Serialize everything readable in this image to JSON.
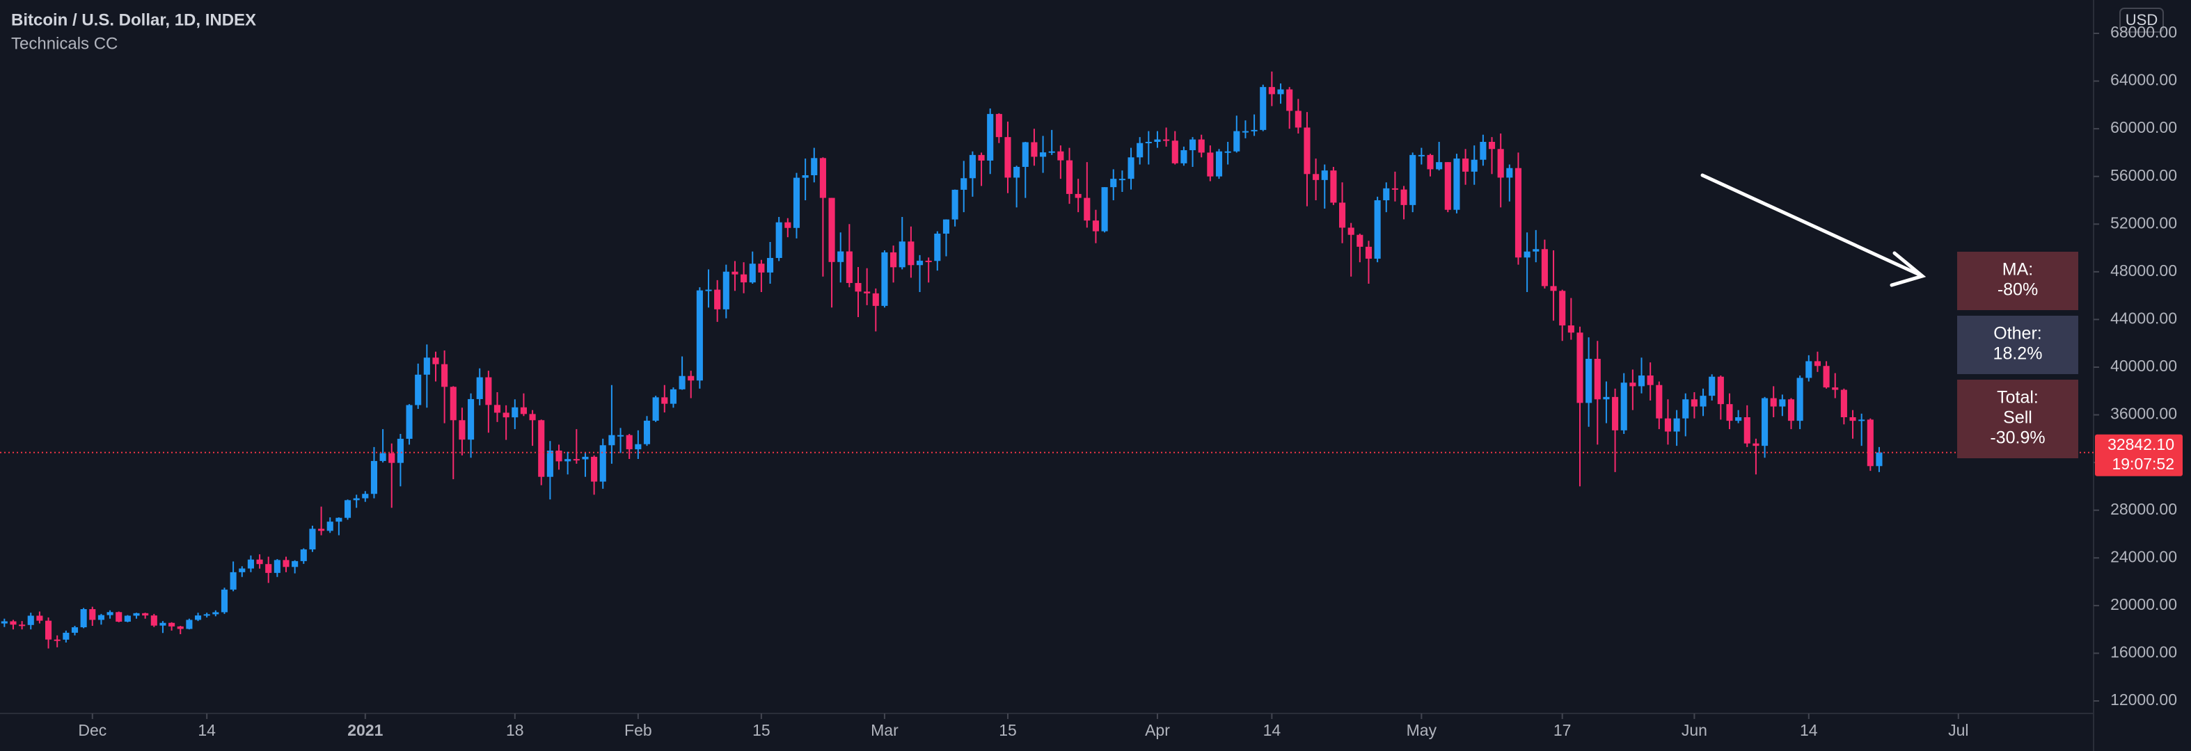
{
  "chart_data": {
    "type": "candlestick",
    "title": "Bitcoin / U.S. Dollar, 1D, INDEX",
    "subtitle": "Technicals CC",
    "currency": "USD",
    "up_color": "#2196f3",
    "down_color": "#f7296d",
    "xlim": [
      -0.5,
      237.2
    ],
    "xticks": [
      {
        "value": 10,
        "label": "Dec"
      },
      {
        "value": 23,
        "label": "14"
      },
      {
        "value": 41,
        "label": "2021"
      },
      {
        "value": 58,
        "label": "18"
      },
      {
        "value": 72,
        "label": "Feb"
      },
      {
        "value": 86,
        "label": "15"
      },
      {
        "value": 100,
        "label": "Mar"
      },
      {
        "value": 114,
        "label": "15"
      },
      {
        "value": 131,
        "label": "Apr"
      },
      {
        "value": 144,
        "label": "14"
      },
      {
        "value": 161,
        "label": "May"
      },
      {
        "value": 177,
        "label": "17"
      },
      {
        "value": 192,
        "label": "Jun"
      },
      {
        "value": 205,
        "label": "14"
      },
      {
        "value": 222,
        "label": "Jul"
      }
    ],
    "ylim": [
      10950,
      70800
    ],
    "yticks": [
      {
        "value": 12000,
        "label": "12000.00"
      },
      {
        "value": 16000,
        "label": "16000.00"
      },
      {
        "value": 20000,
        "label": "20000.00"
      },
      {
        "value": 24000,
        "label": "24000.00"
      },
      {
        "value": 28000,
        "label": "28000.00"
      },
      {
        "value": 32000,
        "label": "32000.00"
      },
      {
        "value": 36000,
        "label": "36000.00"
      },
      {
        "value": 40000,
        "label": "40000.00"
      },
      {
        "value": 44000,
        "label": "44000.00"
      },
      {
        "value": 48000,
        "label": "48000.00"
      },
      {
        "value": 52000,
        "label": "52000.00"
      },
      {
        "value": 56000,
        "label": "56000.00"
      },
      {
        "value": 60000,
        "label": "60000.00"
      },
      {
        "value": 64000,
        "label": "64000.00"
      },
      {
        "value": 68000,
        "label": "68000.00"
      }
    ],
    "last_price": {
      "value": 32842.1,
      "label": "32842.10"
    },
    "countdown": "19:07:52",
    "panels": [
      {
        "lines": [
          "MA:",
          "-80%"
        ]
      },
      {
        "lines": [
          "Other:",
          "18.2%"
        ]
      },
      {
        "lines": [
          "Total:",
          "Sell",
          "-30.9%"
        ]
      }
    ],
    "candles": [
      [
        18500,
        18900,
        18200,
        18680
      ],
      [
        18680,
        18800,
        18000,
        18400
      ],
      [
        18400,
        18700,
        18000,
        18370
      ],
      [
        18370,
        19400,
        18000,
        19150
      ],
      [
        19150,
        19500,
        18500,
        18730
      ],
      [
        18730,
        19000,
        16400,
        17150
      ],
      [
        17150,
        17500,
        16500,
        17140
      ],
      [
        17140,
        17900,
        16900,
        17720
      ],
      [
        17720,
        18300,
        17500,
        18180
      ],
      [
        18180,
        19800,
        18100,
        19700
      ],
      [
        19700,
        19900,
        18300,
        18800
      ],
      [
        18800,
        19300,
        18400,
        19200
      ],
      [
        19200,
        19600,
        18900,
        19450
      ],
      [
        19450,
        19500,
        18600,
        18650
      ],
      [
        18650,
        19200,
        18600,
        19150
      ],
      [
        19150,
        19400,
        18900,
        19360
      ],
      [
        19360,
        19400,
        18900,
        19170
      ],
      [
        19170,
        19300,
        18200,
        18320
      ],
      [
        18320,
        18700,
        17700,
        18550
      ],
      [
        18550,
        18600,
        17900,
        18250
      ],
      [
        18250,
        18300,
        17600,
        18040
      ],
      [
        18040,
        18900,
        18000,
        18800
      ],
      [
        18800,
        19400,
        18700,
        19170
      ],
      [
        19170,
        19400,
        19000,
        19270
      ],
      [
        19270,
        19600,
        19100,
        19440
      ],
      [
        19440,
        21500,
        19300,
        21340
      ],
      [
        21340,
        23700,
        21200,
        22800
      ],
      [
        22800,
        23300,
        22400,
        23110
      ],
      [
        23110,
        24200,
        22800,
        23860
      ],
      [
        23860,
        24300,
        23100,
        23480
      ],
      [
        23480,
        24100,
        21900,
        22740
      ],
      [
        22740,
        23900,
        22400,
        23820
      ],
      [
        23820,
        24100,
        22800,
        23240
      ],
      [
        23240,
        23800,
        22700,
        23730
      ],
      [
        23730,
        24800,
        23500,
        24710
      ],
      [
        24710,
        26700,
        24500,
        26440
      ],
      [
        26440,
        28300,
        25900,
        26270
      ],
      [
        26270,
        27400,
        26100,
        27040
      ],
      [
        27040,
        27400,
        25900,
        27360
      ],
      [
        27360,
        28900,
        27200,
        28840
      ],
      [
        28840,
        29300,
        28200,
        29000
      ],
      [
        29000,
        29600,
        28700,
        29370
      ],
      [
        29370,
        33300,
        29000,
        32130
      ],
      [
        32130,
        34800,
        32000,
        32780
      ],
      [
        32780,
        33600,
        28200,
        31970
      ],
      [
        31970,
        34400,
        30000,
        33990
      ],
      [
        33990,
        36900,
        33500,
        36820
      ],
      [
        36820,
        40300,
        36500,
        39370
      ],
      [
        39370,
        41900,
        36600,
        40800
      ],
      [
        40800,
        41300,
        38800,
        40250
      ],
      [
        40250,
        41400,
        35300,
        38350
      ],
      [
        38350,
        38400,
        30600,
        35550
      ],
      [
        35550,
        36600,
        32600,
        33920
      ],
      [
        33920,
        37800,
        32400,
        37320
      ],
      [
        37320,
        39900,
        36800,
        39150
      ],
      [
        39150,
        39700,
        34500,
        36830
      ],
      [
        36830,
        37900,
        35400,
        36180
      ],
      [
        36180,
        36800,
        33900,
        35790
      ],
      [
        35790,
        37300,
        34800,
        36630
      ],
      [
        36630,
        37800,
        35900,
        36070
      ],
      [
        36070,
        36400,
        33400,
        35550
      ],
      [
        35550,
        35600,
        30100,
        30800
      ],
      [
        30800,
        33800,
        28900,
        33000
      ],
      [
        33000,
        33500,
        31400,
        32100
      ],
      [
        32100,
        32900,
        31000,
        32290
      ],
      [
        32290,
        34800,
        31900,
        32270
      ],
      [
        32270,
        32800,
        30800,
        32480
      ],
      [
        32480,
        32600,
        29300,
        30400
      ],
      [
        30400,
        34000,
        29800,
        33450
      ],
      [
        33450,
        38500,
        31900,
        34300
      ],
      [
        34300,
        34900,
        32800,
        34300
      ],
      [
        34300,
        34400,
        32300,
        33110
      ],
      [
        33110,
        34700,
        32300,
        33540
      ],
      [
        33540,
        35900,
        33400,
        35510
      ],
      [
        35510,
        37600,
        35400,
        37470
      ],
      [
        37470,
        38500,
        36200,
        36930
      ],
      [
        36930,
        38300,
        36600,
        38140
      ],
      [
        38140,
        40900,
        38100,
        39260
      ],
      [
        39260,
        39700,
        37400,
        38880
      ],
      [
        38880,
        46700,
        38200,
        46440
      ],
      [
        46440,
        48200,
        45000,
        46500
      ],
      [
        46500,
        47300,
        43800,
        44850
      ],
      [
        44850,
        48600,
        44100,
        48010
      ],
      [
        48010,
        48900,
        46400,
        47780
      ],
      [
        47780,
        48800,
        46200,
        47110
      ],
      [
        47110,
        49700,
        47000,
        48680
      ],
      [
        48680,
        49000,
        46300,
        47940
      ],
      [
        47940,
        50500,
        47000,
        49160
      ],
      [
        49160,
        52600,
        48900,
        52150
      ],
      [
        52150,
        52500,
        50900,
        51680
      ],
      [
        51680,
        56300,
        50800,
        55890
      ],
      [
        55890,
        57500,
        54000,
        56100
      ],
      [
        56100,
        58400,
        55500,
        57540
      ],
      [
        57540,
        57600,
        47600,
        54200
      ],
      [
        54200,
        54200,
        45000,
        48820
      ],
      [
        48820,
        51300,
        47100,
        49710
      ],
      [
        49710,
        52000,
        46700,
        47060
      ],
      [
        47060,
        48400,
        44200,
        46340
      ],
      [
        46340,
        48300,
        45200,
        46190
      ],
      [
        46190,
        46600,
        43000,
        45140
      ],
      [
        45140,
        49800,
        45000,
        49630
      ],
      [
        49630,
        50200,
        47100,
        48380
      ],
      [
        48380,
        52600,
        48200,
        50540
      ],
      [
        50540,
        51800,
        47500,
        48560
      ],
      [
        48560,
        49400,
        46300,
        48930
      ],
      [
        48930,
        49200,
        47100,
        48910
      ],
      [
        48910,
        51400,
        48100,
        51200
      ],
      [
        51200,
        52400,
        49300,
        52390
      ],
      [
        52390,
        54900,
        51800,
        54880
      ],
      [
        54880,
        57300,
        53000,
        55850
      ],
      [
        55850,
        58100,
        54300,
        57800
      ],
      [
        57800,
        58000,
        55200,
        57330
      ],
      [
        57330,
        61700,
        56200,
        61240
      ],
      [
        61240,
        61300,
        58800,
        59300
      ],
      [
        59300,
        60600,
        54600,
        55900
      ],
      [
        55900,
        56900,
        53400,
        56800
      ],
      [
        56800,
        58900,
        54200,
        58870
      ],
      [
        58870,
        60000,
        56900,
        57650
      ],
      [
        57650,
        59400,
        56300,
        58020
      ],
      [
        58020,
        59900,
        57800,
        58100
      ],
      [
        58100,
        58600,
        55800,
        57350
      ],
      [
        57350,
        58400,
        53700,
        54530
      ],
      [
        54530,
        55800,
        53000,
        54200
      ],
      [
        54200,
        57200,
        51700,
        52300
      ],
      [
        52300,
        53200,
        50400,
        51400
      ],
      [
        51400,
        55100,
        51300,
        55100
      ],
      [
        55100,
        56600,
        54000,
        55800
      ],
      [
        55800,
        56500,
        54700,
        55800
      ],
      [
        55800,
        58400,
        54900,
        57600
      ],
      [
        57600,
        59300,
        57000,
        58800
      ],
      [
        58800,
        59800,
        57000,
        58900
      ],
      [
        58900,
        59800,
        58400,
        59100
      ],
      [
        59100,
        60100,
        58500,
        59000
      ],
      [
        59000,
        59800,
        57000,
        57100
      ],
      [
        57100,
        58500,
        56900,
        58200
      ],
      [
        58200,
        59300,
        56800,
        59100
      ],
      [
        59100,
        59500,
        57600,
        58000
      ],
      [
        58000,
        58600,
        55600,
        56000
      ],
      [
        56000,
        58300,
        55800,
        58100
      ],
      [
        58100,
        58900,
        57000,
        58100
      ],
      [
        58100,
        61100,
        58000,
        59800
      ],
      [
        59800,
        60700,
        59200,
        59800
      ],
      [
        59800,
        61200,
        59400,
        59900
      ],
      [
        59900,
        63700,
        59800,
        63500
      ],
      [
        63500,
        64800,
        61900,
        62900
      ],
      [
        62900,
        63800,
        62100,
        63300
      ],
      [
        63300,
        63500,
        60000,
        61500
      ],
      [
        61500,
        62500,
        59600,
        60100
      ],
      [
        60100,
        61400,
        53500,
        56200
      ],
      [
        56200,
        57500,
        54000,
        55700
      ],
      [
        55700,
        57000,
        53300,
        56500
      ],
      [
        56500,
        56800,
        53600,
        53800
      ],
      [
        53800,
        55500,
        50400,
        51700
      ],
      [
        51700,
        52100,
        47600,
        51100
      ],
      [
        51100,
        51200,
        48800,
        50100
      ],
      [
        50100,
        50600,
        47000,
        49100
      ],
      [
        49100,
        54300,
        48800,
        54000
      ],
      [
        54000,
        55500,
        53000,
        55000
      ],
      [
        55000,
        56400,
        53900,
        54900
      ],
      [
        54900,
        55200,
        52400,
        53600
      ],
      [
        53600,
        58000,
        53000,
        57800
      ],
      [
        57800,
        58400,
        57000,
        57800
      ],
      [
        57800,
        57900,
        56000,
        56600
      ],
      [
        56600,
        58900,
        56500,
        57200
      ],
      [
        57200,
        57200,
        53000,
        53200
      ],
      [
        53200,
        57900,
        52900,
        57500
      ],
      [
        57500,
        58300,
        55300,
        56400
      ],
      [
        56400,
        58600,
        55300,
        57400
      ],
      [
        57400,
        59500,
        56900,
        58900
      ],
      [
        58900,
        59300,
        56200,
        58300
      ],
      [
        58300,
        59600,
        53400,
        55900
      ],
      [
        55900,
        57000,
        53900,
        56700
      ],
      [
        56700,
        58000,
        48600,
        49200
      ],
      [
        49200,
        51300,
        46300,
        49700
      ],
      [
        49700,
        51500,
        48800,
        49900
      ],
      [
        49900,
        50700,
        46600,
        46800
      ],
      [
        46800,
        49800,
        43900,
        46400
      ],
      [
        46400,
        46500,
        42200,
        43500
      ],
      [
        43500,
        45800,
        42300,
        42900
      ],
      [
        42900,
        43400,
        30000,
        37000
      ],
      [
        37000,
        42500,
        35000,
        40700
      ],
      [
        40700,
        42200,
        33500,
        37300
      ],
      [
        37300,
        38800,
        35300,
        37500
      ],
      [
        37500,
        38200,
        31200,
        34700
      ],
      [
        34700,
        39500,
        34400,
        38700
      ],
      [
        38700,
        39800,
        36400,
        38400
      ],
      [
        38400,
        40800,
        37800,
        39300
      ],
      [
        39300,
        40400,
        37200,
        38500
      ],
      [
        38500,
        38800,
        34800,
        35700
      ],
      [
        35700,
        37300,
        33500,
        34600
      ],
      [
        34600,
        36400,
        33400,
        35700
      ],
      [
        35700,
        37800,
        34200,
        37300
      ],
      [
        37300,
        37900,
        35700,
        36700
      ],
      [
        36700,
        38200,
        35900,
        37600
      ],
      [
        37600,
        39400,
        37200,
        39200
      ],
      [
        39200,
        39300,
        35600,
        36900
      ],
      [
        36900,
        37800,
        34800,
        35500
      ],
      [
        35500,
        36400,
        35300,
        35800
      ],
      [
        35800,
        36800,
        33300,
        33600
      ],
      [
        33600,
        34000,
        31000,
        33400
      ],
      [
        33400,
        37500,
        32400,
        37400
      ],
      [
        37400,
        38400,
        35800,
        36700
      ],
      [
        36700,
        37700,
        35900,
        37300
      ],
      [
        37300,
        37400,
        34800,
        35500
      ],
      [
        35500,
        39300,
        34800,
        39100
      ],
      [
        39100,
        41000,
        38800,
        40500
      ],
      [
        40500,
        41300,
        39600,
        40100
      ],
      [
        40100,
        40500,
        38200,
        38300
      ],
      [
        38300,
        39500,
        37400,
        38100
      ],
      [
        38100,
        38200,
        35200,
        35800
      ],
      [
        35800,
        36400,
        34000,
        35500
      ],
      [
        35500,
        36100,
        33400,
        35600
      ],
      [
        35600,
        35700,
        31300,
        31700
      ],
      [
        31700,
        33300,
        31200,
        32842.1
      ]
    ]
  }
}
